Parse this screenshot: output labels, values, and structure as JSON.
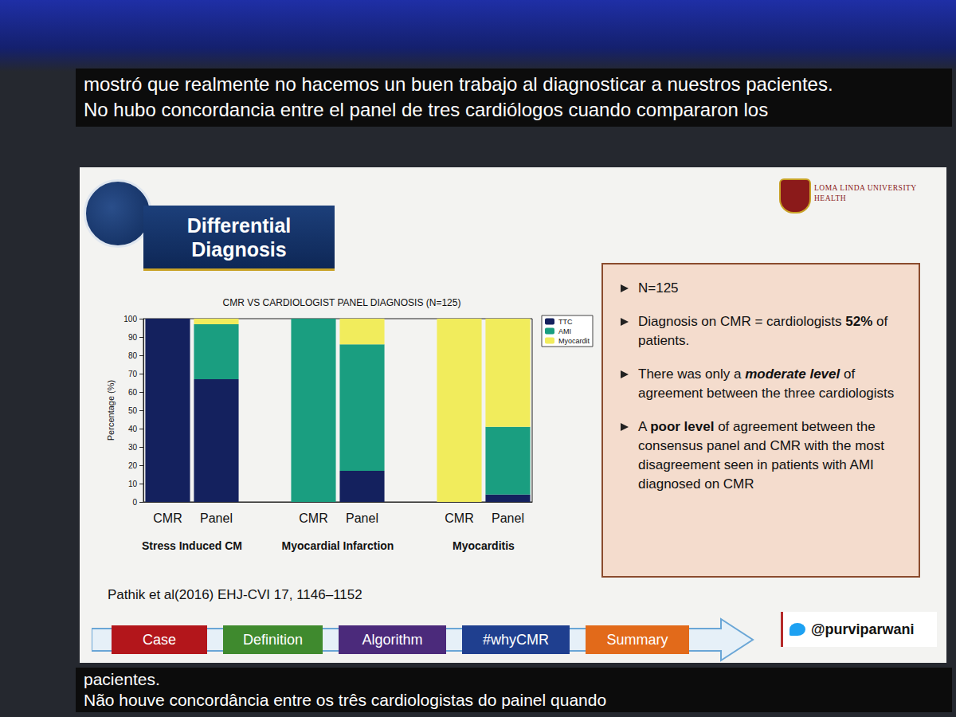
{
  "chart_data": {
    "type": "bar",
    "title": "CMR VS CARDIOLOGIST PANEL DIAGNOSIS (N=125)",
    "y_label": "Percentage (%)",
    "categories": [
      "CMR",
      "Panel",
      null,
      "CMR",
      "Panel",
      null,
      "CMR",
      "Panel"
    ],
    "groups": [
      "Stress Induced CM",
      "Myocardial Infarction",
      "Myocarditis"
    ],
    "series": [
      {
        "name": "TTC",
        "color": "#14215e",
        "values": [
          100,
          67,
          null,
          0,
          17,
          null,
          0,
          4
        ]
      },
      {
        "name": "AMI",
        "color": "#1a9e80",
        "values": [
          0,
          30,
          null,
          100,
          69,
          null,
          0,
          37
        ]
      },
      {
        "name": "Myocardit",
        "color": "#f1ec5c",
        "values": [
          0,
          3,
          null,
          0,
          14,
          null,
          100,
          59
        ]
      }
    ],
    "ylim": [
      0,
      100
    ],
    "yticks": [
      0,
      10,
      20,
      30,
      40,
      50,
      60,
      70,
      80,
      90,
      100
    ],
    "stacked": true,
    "grid": false,
    "legend": "right"
  },
  "captions": {
    "top": [
      "mostró que realmente no hacemos un buen trabajo al diagnosticar a nuestros pacientes.",
      "No hubo concordancia entre el panel de tres cardiólogos cuando compararon los"
    ],
    "bottom": [
      "pacientes.",
      "Não houve concordância entre os três cardiologistas do painel quando"
    ]
  },
  "slide": {
    "title": "Differential Diagnosis",
    "logo": [
      "LOMA LINDA UNIVERSITY",
      "HEALTH"
    ],
    "citation": "Pathik et al(2016) EHJ-CVI 17, 1146–1152",
    "bullets": [
      [
        {
          "text": "N=125"
        }
      ],
      [
        {
          "text": "Diagnosis on CMR = cardiologists "
        },
        {
          "text": "52%",
          "bold": true
        },
        {
          "text": " of patients."
        }
      ],
      [
        {
          "text": "There was only a "
        },
        {
          "text": "moderate level",
          "bold": true,
          "italic": true
        },
        {
          "text": " of agreement between the three cardiologists"
        }
      ],
      [
        {
          "text": "A "
        },
        {
          "text": "poor level",
          "bold": true
        },
        {
          "text": " of agreement between the consensus panel and CMR with the most disagreement seen in patients with AMI diagnosed on CMR"
        }
      ]
    ],
    "nav": [
      "Case",
      "Definition",
      "Algorithm",
      "#whyCMR",
      "Summary"
    ],
    "handle": "@purviparwani"
  }
}
